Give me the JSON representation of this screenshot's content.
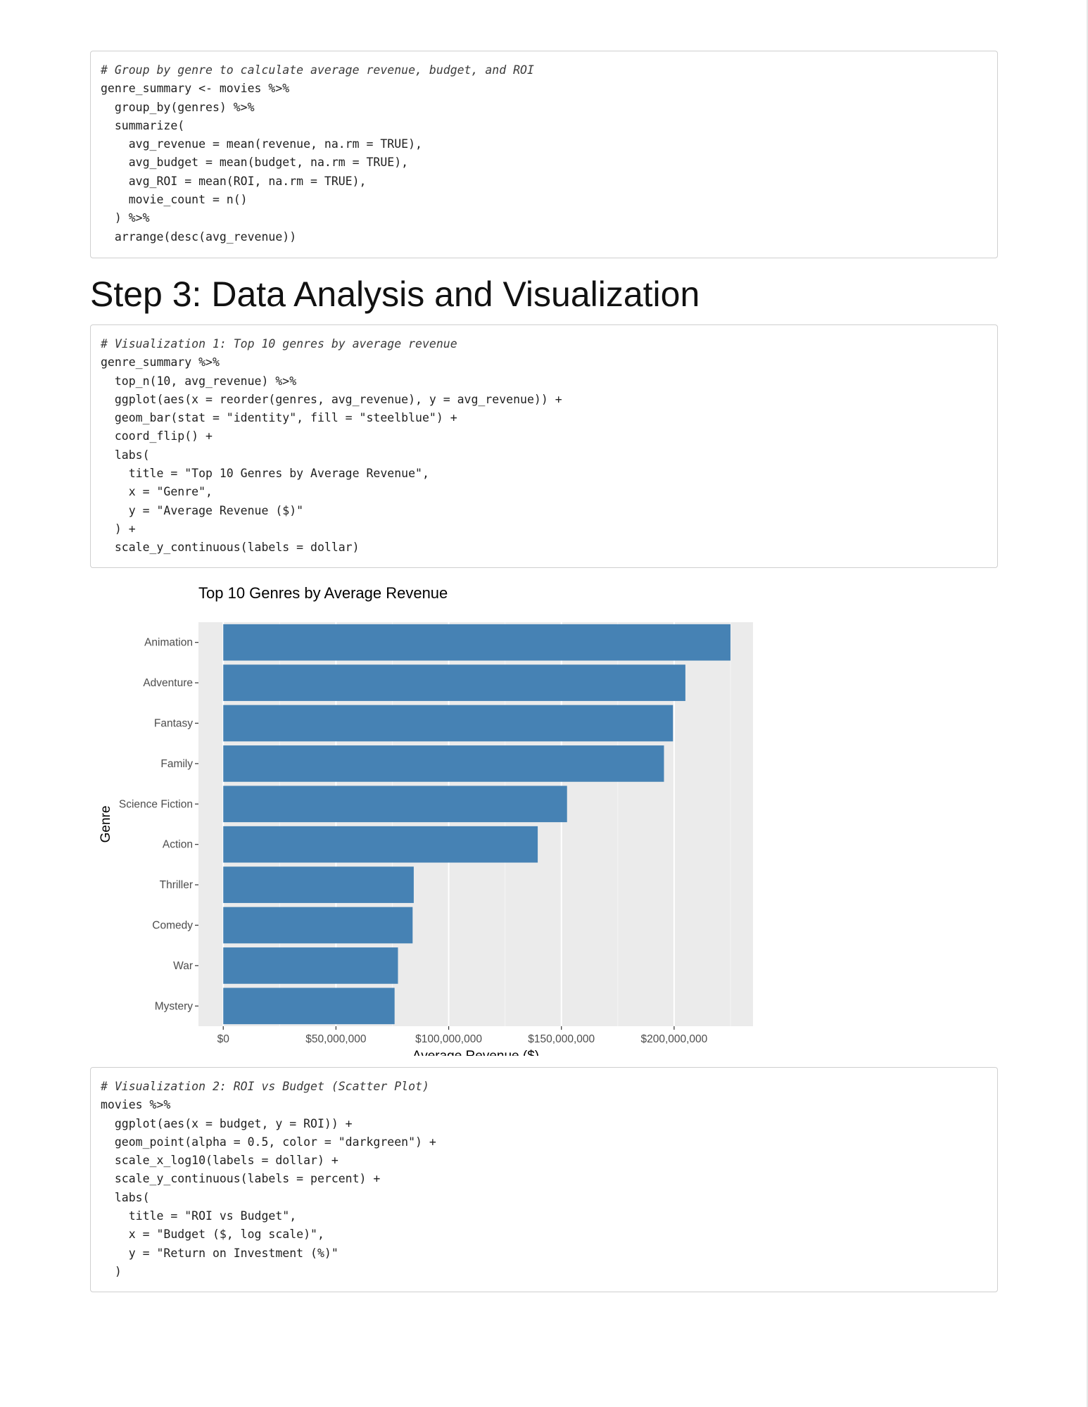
{
  "code_blocks": [
    {
      "lines": [
        "# Group by genre to calculate average revenue, budget, and ROI",
        "genre_summary <- movies %>%",
        "  group_by(genres) %>%",
        "  summarize(",
        "    avg_revenue = mean(revenue, na.rm = TRUE),",
        "    avg_budget = mean(budget, na.rm = TRUE),",
        "    avg_ROI = mean(ROI, na.rm = TRUE),",
        "    movie_count = n()",
        "  ) %>%",
        "  arrange(desc(avg_revenue))"
      ]
    },
    {
      "lines": [
        "# Visualization 1: Top 10 genres by average revenue",
        "genre_summary %>%",
        "  top_n(10, avg_revenue) %>%",
        "  ggplot(aes(x = reorder(genres, avg_revenue), y = avg_revenue)) +",
        "  geom_bar(stat = \"identity\", fill = \"steelblue\") +",
        "  coord_flip() +",
        "  labs(",
        "    title = \"Top 10 Genres by Average Revenue\",",
        "    x = \"Genre\",",
        "    y = \"Average Revenue ($)\"",
        "  ) +",
        "  scale_y_continuous(labels = dollar)"
      ]
    },
    {
      "lines": [
        "# Visualization 2: ROI vs Budget (Scatter Plot)",
        "movies %>%",
        "  ggplot(aes(x = budget, y = ROI)) +",
        "  geom_point(alpha = 0.5, color = \"darkgreen\") +",
        "  scale_x_log10(labels = dollar) +",
        "  scale_y_continuous(labels = percent) +",
        "  labs(",
        "    title = \"ROI vs Budget\",",
        "    x = \"Budget ($, log scale)\",",
        "    y = \"Return on Investment (%)\"",
        "  )"
      ]
    }
  ],
  "heading": "Step 3: Data Analysis and Visualization",
  "chart_data": {
    "type": "bar",
    "orientation": "horizontal",
    "title": "Top 10 Genres by Average Revenue",
    "xlabel": "Average Revenue ($)",
    "ylabel": "Genre",
    "categories": [
      "Animation",
      "Adventure",
      "Fantasy",
      "Family",
      "Science Fiction",
      "Action",
      "Thriller",
      "Comedy",
      "War",
      "Mystery"
    ],
    "values": [
      225000000,
      205000000,
      199500000,
      195500000,
      152500000,
      139500000,
      84500000,
      84000000,
      77500000,
      76000000
    ],
    "xlim": [
      -11000000,
      235000000
    ],
    "ticks": [
      0,
      50000000,
      100000000,
      150000000,
      200000000
    ],
    "tick_labels": [
      "$0",
      "$50,000,000",
      "$100,000,000",
      "$150,000,000",
      "$200,000,000"
    ],
    "bar_color": "#4682B4",
    "panel_color": "#EBEBEB",
    "grid": true
  }
}
